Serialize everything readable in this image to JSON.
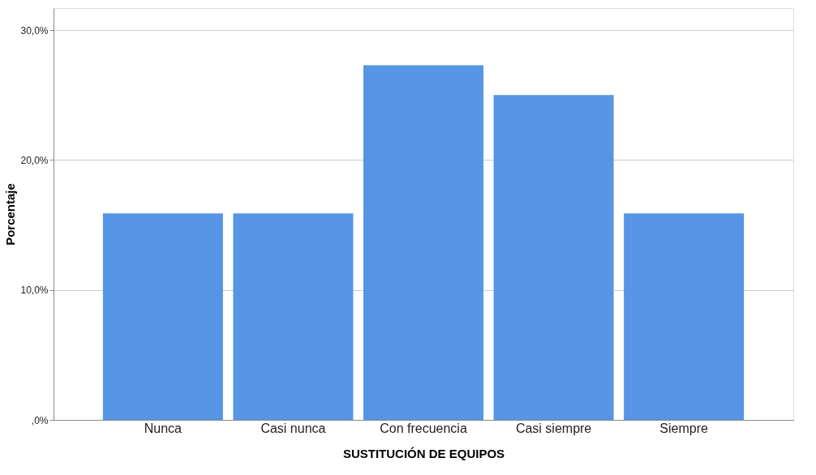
{
  "chart_data": {
    "type": "bar",
    "xlabel": "SUSTITUCIÓN DE EQUIPOS",
    "ylabel": "Porcentaje",
    "categories": [
      "Nunca",
      "Casi nunca",
      "Con frecuencia",
      "Casi siempre",
      "Siempre"
    ],
    "values": [
      15.9,
      15.9,
      27.3,
      25.0,
      15.9
    ],
    "color": "#5595e3",
    "ylim": [
      0,
      31.7
    ],
    "yticks": [
      {
        "value": 0,
        "label": ",0%"
      },
      {
        "value": 10,
        "label": "10,0%"
      },
      {
        "value": 20,
        "label": "20,0%"
      },
      {
        "value": 30,
        "label": "30,0%"
      }
    ],
    "grid": "y"
  }
}
